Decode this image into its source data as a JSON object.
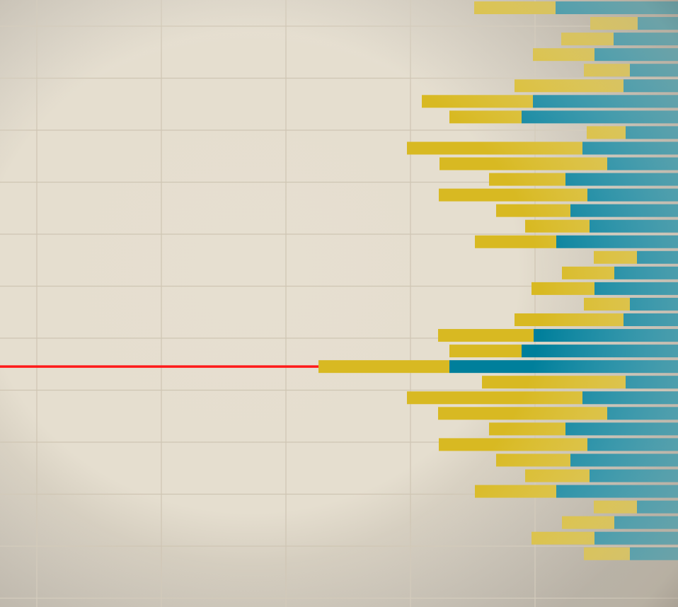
{
  "colors": {
    "background_center": "#e6dfd0",
    "background_edge": "#a59d90",
    "grid": "#cfc5b3",
    "series_a": "#d8b922",
    "series_b": "#007f9b",
    "highlight_line": "#ff1a1a"
  },
  "chart_data": {
    "type": "bar",
    "orientation": "horizontal",
    "stacked": true,
    "grid": true,
    "legend": "none",
    "title": "",
    "xlabel": "",
    "ylabel": "",
    "xlim": [
      0,
      958
    ],
    "series": [
      {
        "values": [
          115,
          67,
          74,
          87,
          65,
          154,
          157,
          102,
          55,
          248,
          237,
          108,
          210,
          105,
          91,
          115,
          61,
          74,
          89,
          65,
          154,
          135,
          102,
          185,
          203,
          248,
          239,
          108,
          210,
          105,
          91,
          115,
          61,
          74,
          89,
          65
        ]
      },
      {
        "values": [
          173,
          57,
          91,
          118,
          68,
          77,
          205,
          221,
          74,
          135,
          100,
          159,
          128,
          152,
          125,
          172,
          58,
          90,
          118,
          68,
          77,
          204,
          221,
          323,
          74,
          135,
          100,
          159,
          128,
          152,
          125,
          172,
          58,
          90,
          118,
          68
        ]
      }
    ],
    "highlight_bar_index": 23
  }
}
